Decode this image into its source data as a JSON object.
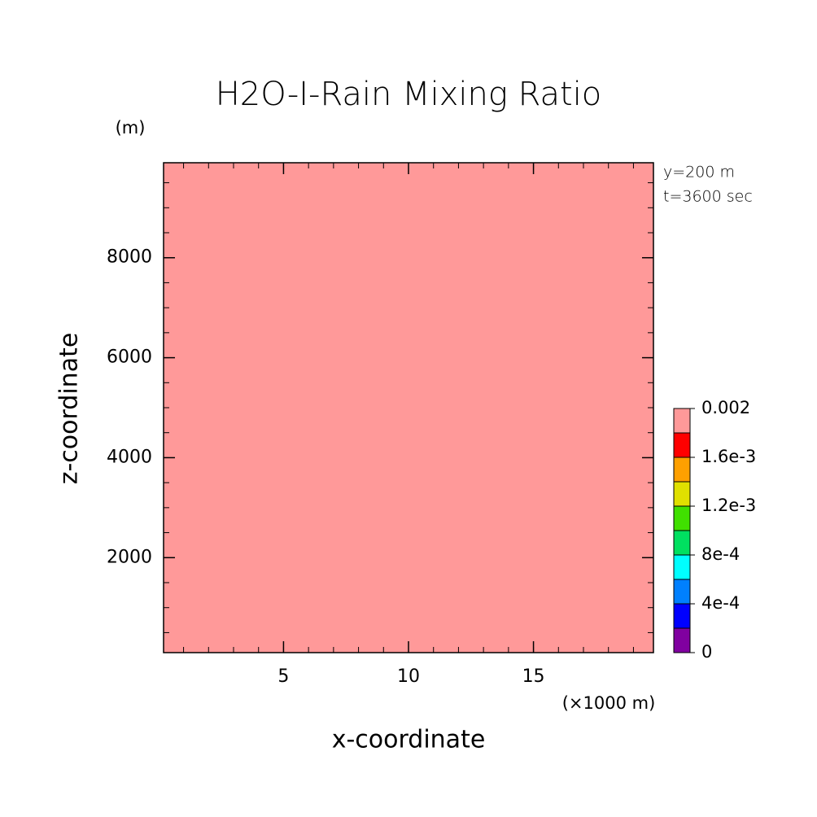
{
  "chart_data": {
    "type": "contour",
    "title": "H2O-I-Rain Mixing Ratio",
    "xlabel": "x-coordinate",
    "ylabel": "z-coordinate",
    "x_unit": "(×1000 m)",
    "y_unit": "(m)",
    "annotations": [
      "y=200 m",
      "t=3600 sec"
    ],
    "xlim": [
      0.2,
      19.8
    ],
    "xticks": [
      5,
      10,
      15
    ],
    "x_minor_step": 1,
    "ylim": [
      100,
      9900
    ],
    "yticks": [
      2000,
      4000,
      6000,
      8000
    ],
    "y_minor_step": 500,
    "field_color": "#ff9999",
    "colorbar": {
      "levels": [
        0,
        0.0002,
        0.0004,
        0.0006,
        0.0008,
        0.001,
        0.0012,
        0.0014,
        0.0016,
        0.0018,
        0.002
      ],
      "colors": [
        "#8000a0",
        "#0000ff",
        "#0080ff",
        "#00ffff",
        "#00e060",
        "#40e000",
        "#e0e000",
        "#ffa000",
        "#ff0000",
        "#ff9999"
      ],
      "ticks": [
        0,
        {
          "value": 0.0004,
          "label": "4e-4"
        },
        {
          "value": 0.0008,
          "label": "8e-4"
        },
        {
          "value": 0.0012,
          "label": "1.2e-3"
        },
        {
          "value": 0.0016,
          "label": "1.6e-3"
        },
        0.002
      ]
    }
  }
}
